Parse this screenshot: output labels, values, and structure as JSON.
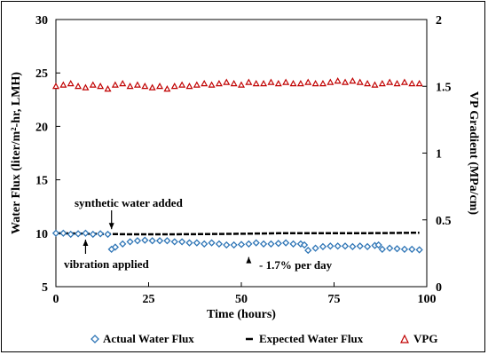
{
  "chart_data": {
    "type": "scatter",
    "xlabel": "Time (hours)",
    "ylabel_left": "Water Flux (liter/m²-hr, LMH)",
    "ylabel_right": "VP Gradient (MPa/cm)",
    "xlim": [
      0,
      100
    ],
    "ylim_left": [
      5,
      30
    ],
    "ylim_right": [
      0,
      2
    ],
    "x_ticks": [
      "0",
      "25",
      "50",
      "75",
      "100"
    ],
    "y_left_ticks": [
      "5",
      "10",
      "15",
      "20",
      "25",
      "30"
    ],
    "y_right_ticks": [
      "0",
      "0.5",
      "1",
      "1.5",
      "2"
    ],
    "grid": false,
    "legend_position": "bottom",
    "series": [
      {
        "name": "Actual Water Flux",
        "axis": "left",
        "marker": "diamond",
        "color": "#2E75B6",
        "x": [
          0,
          2,
          4,
          6,
          8,
          10,
          12,
          14,
          15,
          16,
          18,
          20,
          22,
          24,
          26,
          28,
          30,
          32,
          34,
          36,
          38,
          40,
          42,
          44,
          46,
          48,
          50,
          52,
          54,
          56,
          58,
          60,
          62,
          64,
          66,
          67,
          68,
          70,
          72,
          74,
          76,
          78,
          80,
          82,
          84,
          86,
          87,
          88,
          90,
          92,
          94,
          96,
          98
        ],
        "y": [
          10.0,
          10.0,
          9.9,
          9.95,
          10.0,
          9.9,
          9.95,
          9.9,
          8.5,
          8.7,
          9.0,
          9.2,
          9.3,
          9.35,
          9.3,
          9.3,
          9.3,
          9.2,
          9.2,
          9.1,
          9.1,
          9.0,
          9.1,
          9.0,
          8.9,
          8.9,
          8.95,
          9.0,
          9.1,
          9.0,
          9.0,
          9.05,
          9.1,
          9.0,
          9.0,
          8.9,
          8.4,
          8.6,
          8.75,
          8.8,
          8.8,
          8.8,
          8.75,
          8.8,
          8.75,
          8.85,
          8.9,
          8.5,
          8.6,
          8.55,
          8.5,
          8.5,
          8.45
        ]
      },
      {
        "name": "Expected Water Flux",
        "axis": "left",
        "marker": "dash",
        "color": "#000000",
        "x": [
          0,
          10,
          20,
          30,
          40,
          50,
          60,
          70,
          80,
          90,
          98
        ],
        "y": [
          10.0,
          9.95,
          9.9,
          9.9,
          9.92,
          9.95,
          10.0,
          10.0,
          10.0,
          10.02,
          10.05
        ]
      },
      {
        "name": "VPG",
        "axis": "right",
        "marker": "triangle",
        "color": "#C00000",
        "x": [
          0,
          2,
          4,
          6,
          8,
          10,
          12,
          14,
          16,
          18,
          20,
          22,
          24,
          26,
          28,
          30,
          32,
          34,
          36,
          38,
          40,
          42,
          44,
          46,
          48,
          50,
          52,
          54,
          56,
          58,
          60,
          62,
          64,
          66,
          68,
          70,
          72,
          74,
          76,
          78,
          80,
          82,
          84,
          86,
          88,
          90,
          92,
          94,
          96,
          98
        ],
        "y": [
          1.5,
          1.51,
          1.52,
          1.5,
          1.49,
          1.51,
          1.5,
          1.48,
          1.51,
          1.52,
          1.5,
          1.51,
          1.5,
          1.49,
          1.5,
          1.48,
          1.5,
          1.51,
          1.5,
          1.51,
          1.52,
          1.51,
          1.52,
          1.53,
          1.52,
          1.51,
          1.53,
          1.52,
          1.52,
          1.53,
          1.52,
          1.53,
          1.52,
          1.52,
          1.53,
          1.52,
          1.52,
          1.53,
          1.54,
          1.53,
          1.54,
          1.53,
          1.52,
          1.51,
          1.52,
          1.53,
          1.52,
          1.53,
          1.52,
          1.52
        ]
      }
    ],
    "annotations": [
      {
        "text": "synthetic water added",
        "x": 15,
        "y": 10.05,
        "direction": "down"
      },
      {
        "text": "vibration applied",
        "x": 8,
        "y": 9.9,
        "direction": "up"
      },
      {
        "text": "- 1.7% per day",
        "x": 52,
        "y": 8.6,
        "direction": "up"
      }
    ]
  }
}
